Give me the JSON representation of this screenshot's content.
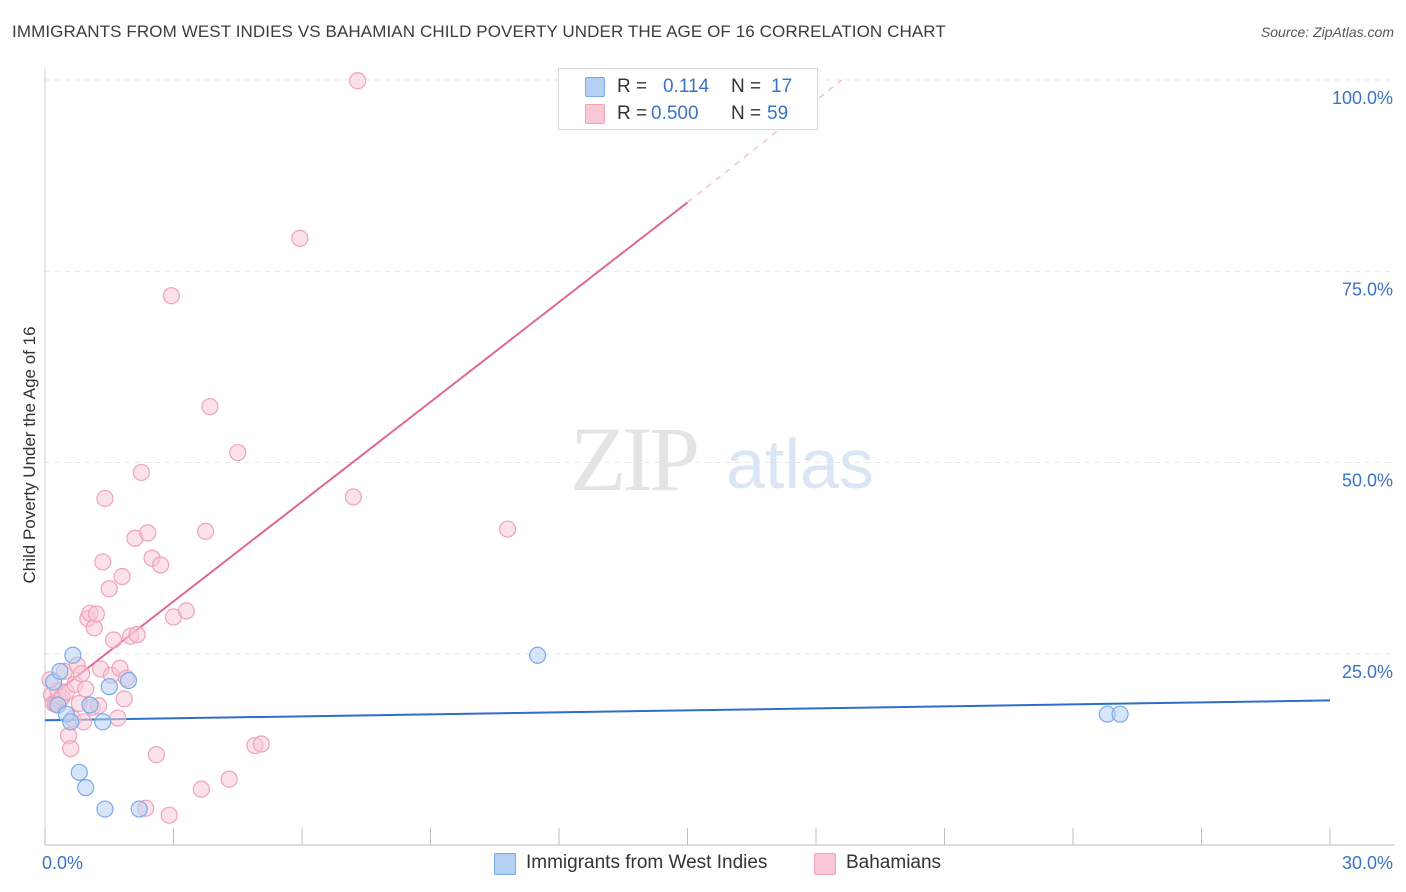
{
  "header": {
    "title": "IMMIGRANTS FROM WEST INDIES VS BAHAMIAN CHILD POVERTY UNDER THE AGE OF 16 CORRELATION CHART",
    "source": "Source: ZipAtlas.com"
  },
  "watermark": {
    "zip": "ZIP",
    "atlas": "atlas"
  },
  "legend": {
    "r_label": "R =",
    "n_label": "N =",
    "series": [
      {
        "r": "0.114",
        "n": "17"
      },
      {
        "r": "0.500",
        "n": "59"
      }
    ]
  },
  "bottom_legend": {
    "items": [
      {
        "label": "Immigrants from West Indies"
      },
      {
        "label": "Bahamians"
      }
    ]
  },
  "chart_data": {
    "type": "scatter",
    "title": "IMMIGRANTS FROM WEST INDIES VS BAHAMIAN CHILD POVERTY UNDER THE AGE OF 16 CORRELATION CHART",
    "xlabel": "",
    "ylabel": "Child Poverty Under the Age of 16",
    "xlim": [
      0,
      30
    ],
    "ylim": [
      0,
      100
    ],
    "x_tick_labels": [
      {
        "value": 0,
        "label": "0.0%"
      },
      {
        "value": 30,
        "label": "30.0%"
      }
    ],
    "y_tick_labels": [
      {
        "value": 25,
        "label": "25.0%"
      },
      {
        "value": 50,
        "label": "50.0%"
      },
      {
        "value": 75,
        "label": "75.0%"
      },
      {
        "value": 100,
        "label": "100.0%"
      }
    ],
    "series": [
      {
        "name": "Immigrants from West Indies",
        "color": "#7aaae8",
        "fill": "#b4d0f2",
        "line_color": "#2b6fc9",
        "r": 0.114,
        "n": 17,
        "trend": {
          "x": [
            0,
            30
          ],
          "y": [
            16.3,
            18.9
          ]
        },
        "points": [
          [
            0.2,
            21.3
          ],
          [
            0.3,
            18.3
          ],
          [
            0.35,
            22.7
          ],
          [
            0.5,
            17.1
          ],
          [
            0.6,
            16.1
          ],
          [
            0.65,
            24.8
          ],
          [
            0.8,
            9.5
          ],
          [
            0.95,
            7.5
          ],
          [
            1.05,
            18.3
          ],
          [
            1.35,
            16.1
          ],
          [
            1.4,
            4.7
          ],
          [
            1.5,
            20.7
          ],
          [
            1.95,
            21.5
          ],
          [
            2.2,
            4.7
          ],
          [
            11.5,
            24.8
          ],
          [
            24.8,
            17.1
          ],
          [
            25.1,
            17.1
          ]
        ]
      },
      {
        "name": "Bahamians",
        "color": "#f0a2bb",
        "fill": "#f8c8d6",
        "line_color": "#e0688f",
        "r": 0.5,
        "n": 59,
        "trend": {
          "x": [
            0,
            15
          ],
          "y": [
            18.8,
            84.0
          ]
        },
        "trend_ext": {
          "x": [
            15,
            18.6
          ],
          "y": [
            84.0,
            100.0
          ]
        },
        "points": [
          [
            0.15,
            19.6
          ],
          [
            0.2,
            18.5
          ],
          [
            0.25,
            18.4
          ],
          [
            0.3,
            20.2
          ],
          [
            0.35,
            18.9
          ],
          [
            0.4,
            19.3
          ],
          [
            0.45,
            22.7
          ],
          [
            0.5,
            20.0
          ],
          [
            0.55,
            14.3
          ],
          [
            0.6,
            12.6
          ],
          [
            0.65,
            16.5
          ],
          [
            0.7,
            21.0
          ],
          [
            0.75,
            23.5
          ],
          [
            0.8,
            18.5
          ],
          [
            0.85,
            22.4
          ],
          [
            0.9,
            16.1
          ],
          [
            0.95,
            20.4
          ],
          [
            1.0,
            29.6
          ],
          [
            1.05,
            30.3
          ],
          [
            1.1,
            18.0
          ],
          [
            1.15,
            28.4
          ],
          [
            1.2,
            30.2
          ],
          [
            1.25,
            18.2
          ],
          [
            1.3,
            23.0
          ],
          [
            1.35,
            37.0
          ],
          [
            1.4,
            45.3
          ],
          [
            1.5,
            33.5
          ],
          [
            1.55,
            22.2
          ],
          [
            1.6,
            26.8
          ],
          [
            1.7,
            16.6
          ],
          [
            1.75,
            23.1
          ],
          [
            1.8,
            35.1
          ],
          [
            1.85,
            19.1
          ],
          [
            1.9,
            21.8
          ],
          [
            2.0,
            27.3
          ],
          [
            2.1,
            40.1
          ],
          [
            2.15,
            27.5
          ],
          [
            2.25,
            48.7
          ],
          [
            2.35,
            4.8
          ],
          [
            2.4,
            40.8
          ],
          [
            2.5,
            37.5
          ],
          [
            2.6,
            11.8
          ],
          [
            2.7,
            36.6
          ],
          [
            2.9,
            3.9
          ],
          [
            2.95,
            71.8
          ],
          [
            3.0,
            29.8
          ],
          [
            3.3,
            30.6
          ],
          [
            3.65,
            7.3
          ],
          [
            3.75,
            41.0
          ],
          [
            3.85,
            57.3
          ],
          [
            4.3,
            8.6
          ],
          [
            4.5,
            51.3
          ],
          [
            4.9,
            13.0
          ],
          [
            5.05,
            13.2
          ],
          [
            5.95,
            79.3
          ],
          [
            7.2,
            45.5
          ],
          [
            7.3,
            99.9
          ],
          [
            10.8,
            41.3
          ],
          [
            0.12,
            21.6
          ]
        ]
      }
    ]
  }
}
